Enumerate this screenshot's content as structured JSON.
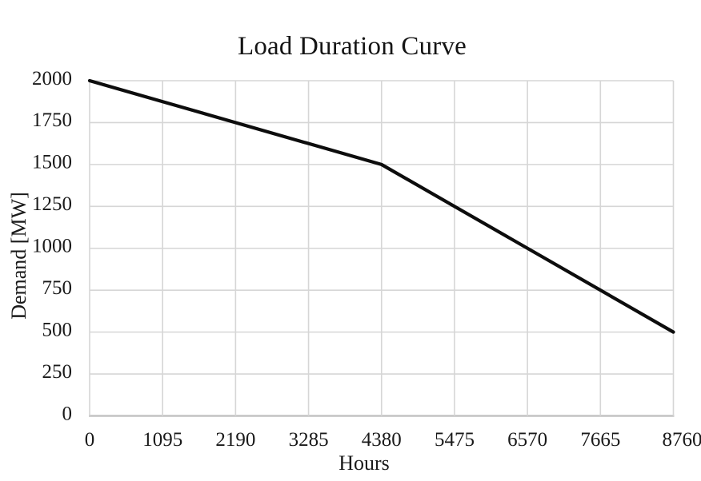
{
  "chart_data": {
    "type": "line",
    "title": "Load Duration Curve",
    "xlabel": "Hours",
    "ylabel": "Demand [MW]",
    "x_ticks": [
      0,
      1095,
      2190,
      3285,
      4380,
      5475,
      6570,
      7665,
      8760
    ],
    "y_ticks": [
      0,
      250,
      500,
      750,
      1000,
      1250,
      1500,
      1750,
      2000
    ],
    "xlim": [
      0,
      8760
    ],
    "ylim": [
      0,
      2000
    ],
    "grid": true,
    "legend": false,
    "series": [
      {
        "name": "Demand",
        "x": [
          0,
          4380,
          8760
        ],
        "y": [
          2000,
          1500,
          500
        ],
        "color": "#0d0d0d"
      }
    ],
    "colors": {
      "gridline": "#d6d6d6",
      "axis_line": "#c3c3c3",
      "text": "#1a1a1a",
      "background": "#ffffff"
    }
  }
}
